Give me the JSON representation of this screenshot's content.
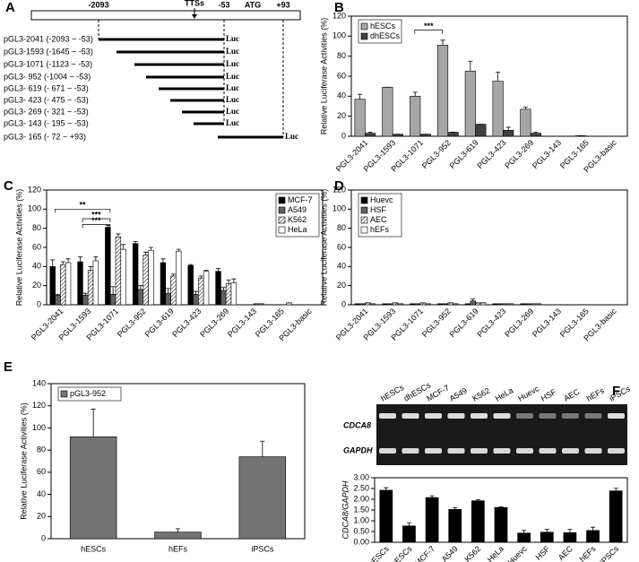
{
  "construct_diagram": {
    "panel": "A",
    "ruler_labels": [
      "-2093",
      "TTSs",
      "-53",
      "ATG",
      "+93"
    ],
    "constructs": [
      "pGL3-2041 (-2093 ~ -53)",
      "pGL3-1593 (-1645 ~ -53)",
      "pGL3-1071 (-1123 ~ -53)",
      "pGL3- 952 (-1004 ~ -53)",
      "pGL3- 619 (- 671 ~ -53)",
      "pGL3- 423 (- 475 ~ -53)",
      "pGL3- 269 (- 321 ~ -53)",
      "pGL3- 143 (- 195 ~ -53)",
      "pGL3- 165 (- 72 ~ +93)"
    ],
    "reporter": "Luc"
  },
  "gel": {
    "lanes": [
      "hESCs",
      "dhESCs",
      "MCF-7",
      "A549",
      "K562",
      "HeLa",
      "Huevc",
      "HSF",
      "AEC",
      "hEFs",
      "iPSCs"
    ],
    "rows": [
      "CDCA8",
      "GAPDH"
    ]
  },
  "chart_data": [
    {
      "type": "bar",
      "panel": "B",
      "ylabel": "Relative Luciferase Activities (%)",
      "categories": [
        "PGL3-2041",
        "PGL3-1593",
        "PGL3-1071",
        "PGL3-952",
        "PGL3-619",
        "PGL3-423",
        "PGL3-269",
        "PGL3-143",
        "PGL3-165",
        "PGL3-basic"
      ],
      "series": [
        {
          "name": "hESCs",
          "color": "#a6a6a6",
          "values": [
            37,
            49,
            40,
            91,
            65,
            55,
            27,
            0,
            0.5,
            0
          ],
          "errors": [
            5,
            0,
            4,
            5,
            10,
            9,
            2,
            0,
            0,
            0
          ]
        },
        {
          "name": "dhESCs",
          "color": "#404040",
          "values": [
            3,
            2,
            2,
            4,
            12,
            6,
            3,
            0,
            0,
            0
          ],
          "errors": [
            1,
            0,
            0,
            0,
            0,
            3,
            1,
            0,
            0,
            0
          ]
        }
      ],
      "ylim": [
        0,
        120
      ],
      "yticks": [
        0,
        20,
        40,
        60,
        80,
        100,
        120
      ],
      "legend": "upper left",
      "annotations": [
        "***"
      ]
    },
    {
      "type": "bar",
      "panel": "C",
      "ylabel": "Relative Luciferase Activities (%)",
      "categories": [
        "PGL3-2041",
        "PGL3-1593",
        "PGL3-1071",
        "PGL3-952",
        "PGL3-619",
        "PGL3-423",
        "PGL3-269",
        "PGL3-143",
        "PGL3-165",
        "PGL3-basic"
      ],
      "series": [
        {
          "name": "MCF-7",
          "color": "#000000",
          "values": [
            40,
            45,
            81,
            64,
            44,
            41,
            35,
            0,
            0,
            0
          ],
          "errors": [
            7,
            5,
            2,
            2,
            4,
            1,
            3,
            0,
            0,
            0
          ]
        },
        {
          "name": "A549",
          "color": "#606060",
          "values": [
            10,
            10,
            11,
            16,
            12,
            11,
            15,
            0,
            0,
            0
          ],
          "errors": [
            1,
            2,
            8,
            4,
            5,
            3,
            3,
            0,
            0,
            0
          ]
        },
        {
          "name": "K562",
          "color": "#ffffff",
          "hatch": true,
          "values": [
            42,
            36,
            71,
            52,
            30,
            28,
            22,
            1,
            0,
            0
          ],
          "errors": [
            3,
            4,
            3,
            3,
            2,
            2,
            4,
            0,
            0,
            0
          ]
        },
        {
          "name": "HeLa",
          "color": "#ffffff",
          "values": [
            44,
            46,
            58,
            57,
            56,
            35,
            23,
            1,
            2,
            0
          ],
          "errors": [
            4,
            4,
            5,
            3,
            2,
            1,
            4,
            0,
            0,
            0
          ]
        }
      ],
      "ylim": [
        0,
        120
      ],
      "yticks": [
        0,
        20,
        40,
        60,
        80,
        100,
        120
      ],
      "legend": "upper right",
      "annotations": [
        "**",
        "***",
        "***"
      ]
    },
    {
      "type": "bar",
      "panel": "D",
      "ylabel": "Relative Luciferase Activities (%)",
      "categories": [
        "PGL3-2041",
        "PGL3-1593",
        "PGL3-1071",
        "PGL3-952",
        "PGL3-619",
        "PGL3-423",
        "PGL3-269",
        "PGL3-143",
        "PGL3-165",
        "PGL3-basic"
      ],
      "series": [
        {
          "name": "Huevc",
          "color": "#000000",
          "values": [
            1,
            1,
            1,
            1,
            1,
            1,
            1,
            0,
            0,
            0
          ],
          "errors": [
            0,
            0,
            0,
            0,
            0,
            0,
            0,
            0,
            0,
            0
          ]
        },
        {
          "name": "HSF",
          "color": "#606060",
          "values": [
            1,
            1,
            1,
            1,
            4,
            1,
            1,
            0,
            0,
            0
          ],
          "errors": [
            0,
            0,
            0,
            0,
            2,
            0,
            0,
            0,
            0,
            0
          ]
        },
        {
          "name": "AEC",
          "color": "#ffffff",
          "hatch": true,
          "values": [
            2,
            2,
            2,
            2,
            2,
            1,
            1,
            0,
            0,
            0
          ],
          "errors": [
            0,
            0,
            0,
            0,
            0,
            0,
            0,
            0,
            0,
            0
          ]
        },
        {
          "name": "hEFs",
          "color": "#ffffff",
          "values": [
            1,
            1,
            1,
            1,
            2,
            1,
            1,
            0,
            0,
            0
          ],
          "errors": [
            0,
            0,
            0,
            0,
            0,
            0,
            0,
            0,
            0,
            0
          ]
        }
      ],
      "ylim": [
        0,
        120
      ],
      "yticks": [
        0,
        20,
        40,
        60,
        80,
        100,
        120
      ],
      "legend": "upper left"
    },
    {
      "type": "bar",
      "panel": "E",
      "ylabel": "Relative Luciferase Activities (%)",
      "categories": [
        "hESCs",
        "hEFs",
        "iPSCs"
      ],
      "series": [
        {
          "name": "pGL3-952",
          "color": "#737373",
          "values": [
            92,
            6,
            74
          ],
          "errors": [
            25,
            3,
            14
          ]
        }
      ],
      "ylim": [
        0,
        140
      ],
      "yticks": [
        0,
        20,
        40,
        60,
        80,
        100,
        120,
        140
      ],
      "legend": "upper left"
    },
    {
      "type": "bar",
      "panel": "F",
      "ylabel": "CDCA8/GAPDH",
      "categories": [
        "hESCs",
        "dhESCs",
        "MCF-7",
        "A549",
        "K562",
        "HeLa",
        "Huevc",
        "HSF",
        "AEC",
        "hEFs",
        "iPSCs"
      ],
      "series": [
        {
          "name": null,
          "color": "#000000",
          "values": [
            2.42,
            0.76,
            2.08,
            1.53,
            1.93,
            1.62,
            0.43,
            0.47,
            0.45,
            0.55,
            2.39
          ],
          "errors": [
            0.12,
            0.15,
            0.08,
            0.08,
            0.05,
            0.03,
            0.12,
            0.14,
            0.15,
            0.15,
            0.12
          ]
        }
      ],
      "ylim": [
        0,
        3
      ],
      "yticks": [
        {
          "value": 0,
          "label": "0.00"
        },
        {
          "value": 0.5,
          "label": "0.50"
        },
        {
          "value": 1,
          "label": "1.00"
        },
        {
          "value": 1.5,
          "label": "1.50"
        },
        {
          "value": 2,
          "label": "2.00"
        },
        {
          "value": 2.5,
          "label": "2.50"
        },
        {
          "value": 3,
          "label": "3.00"
        }
      ]
    }
  ]
}
